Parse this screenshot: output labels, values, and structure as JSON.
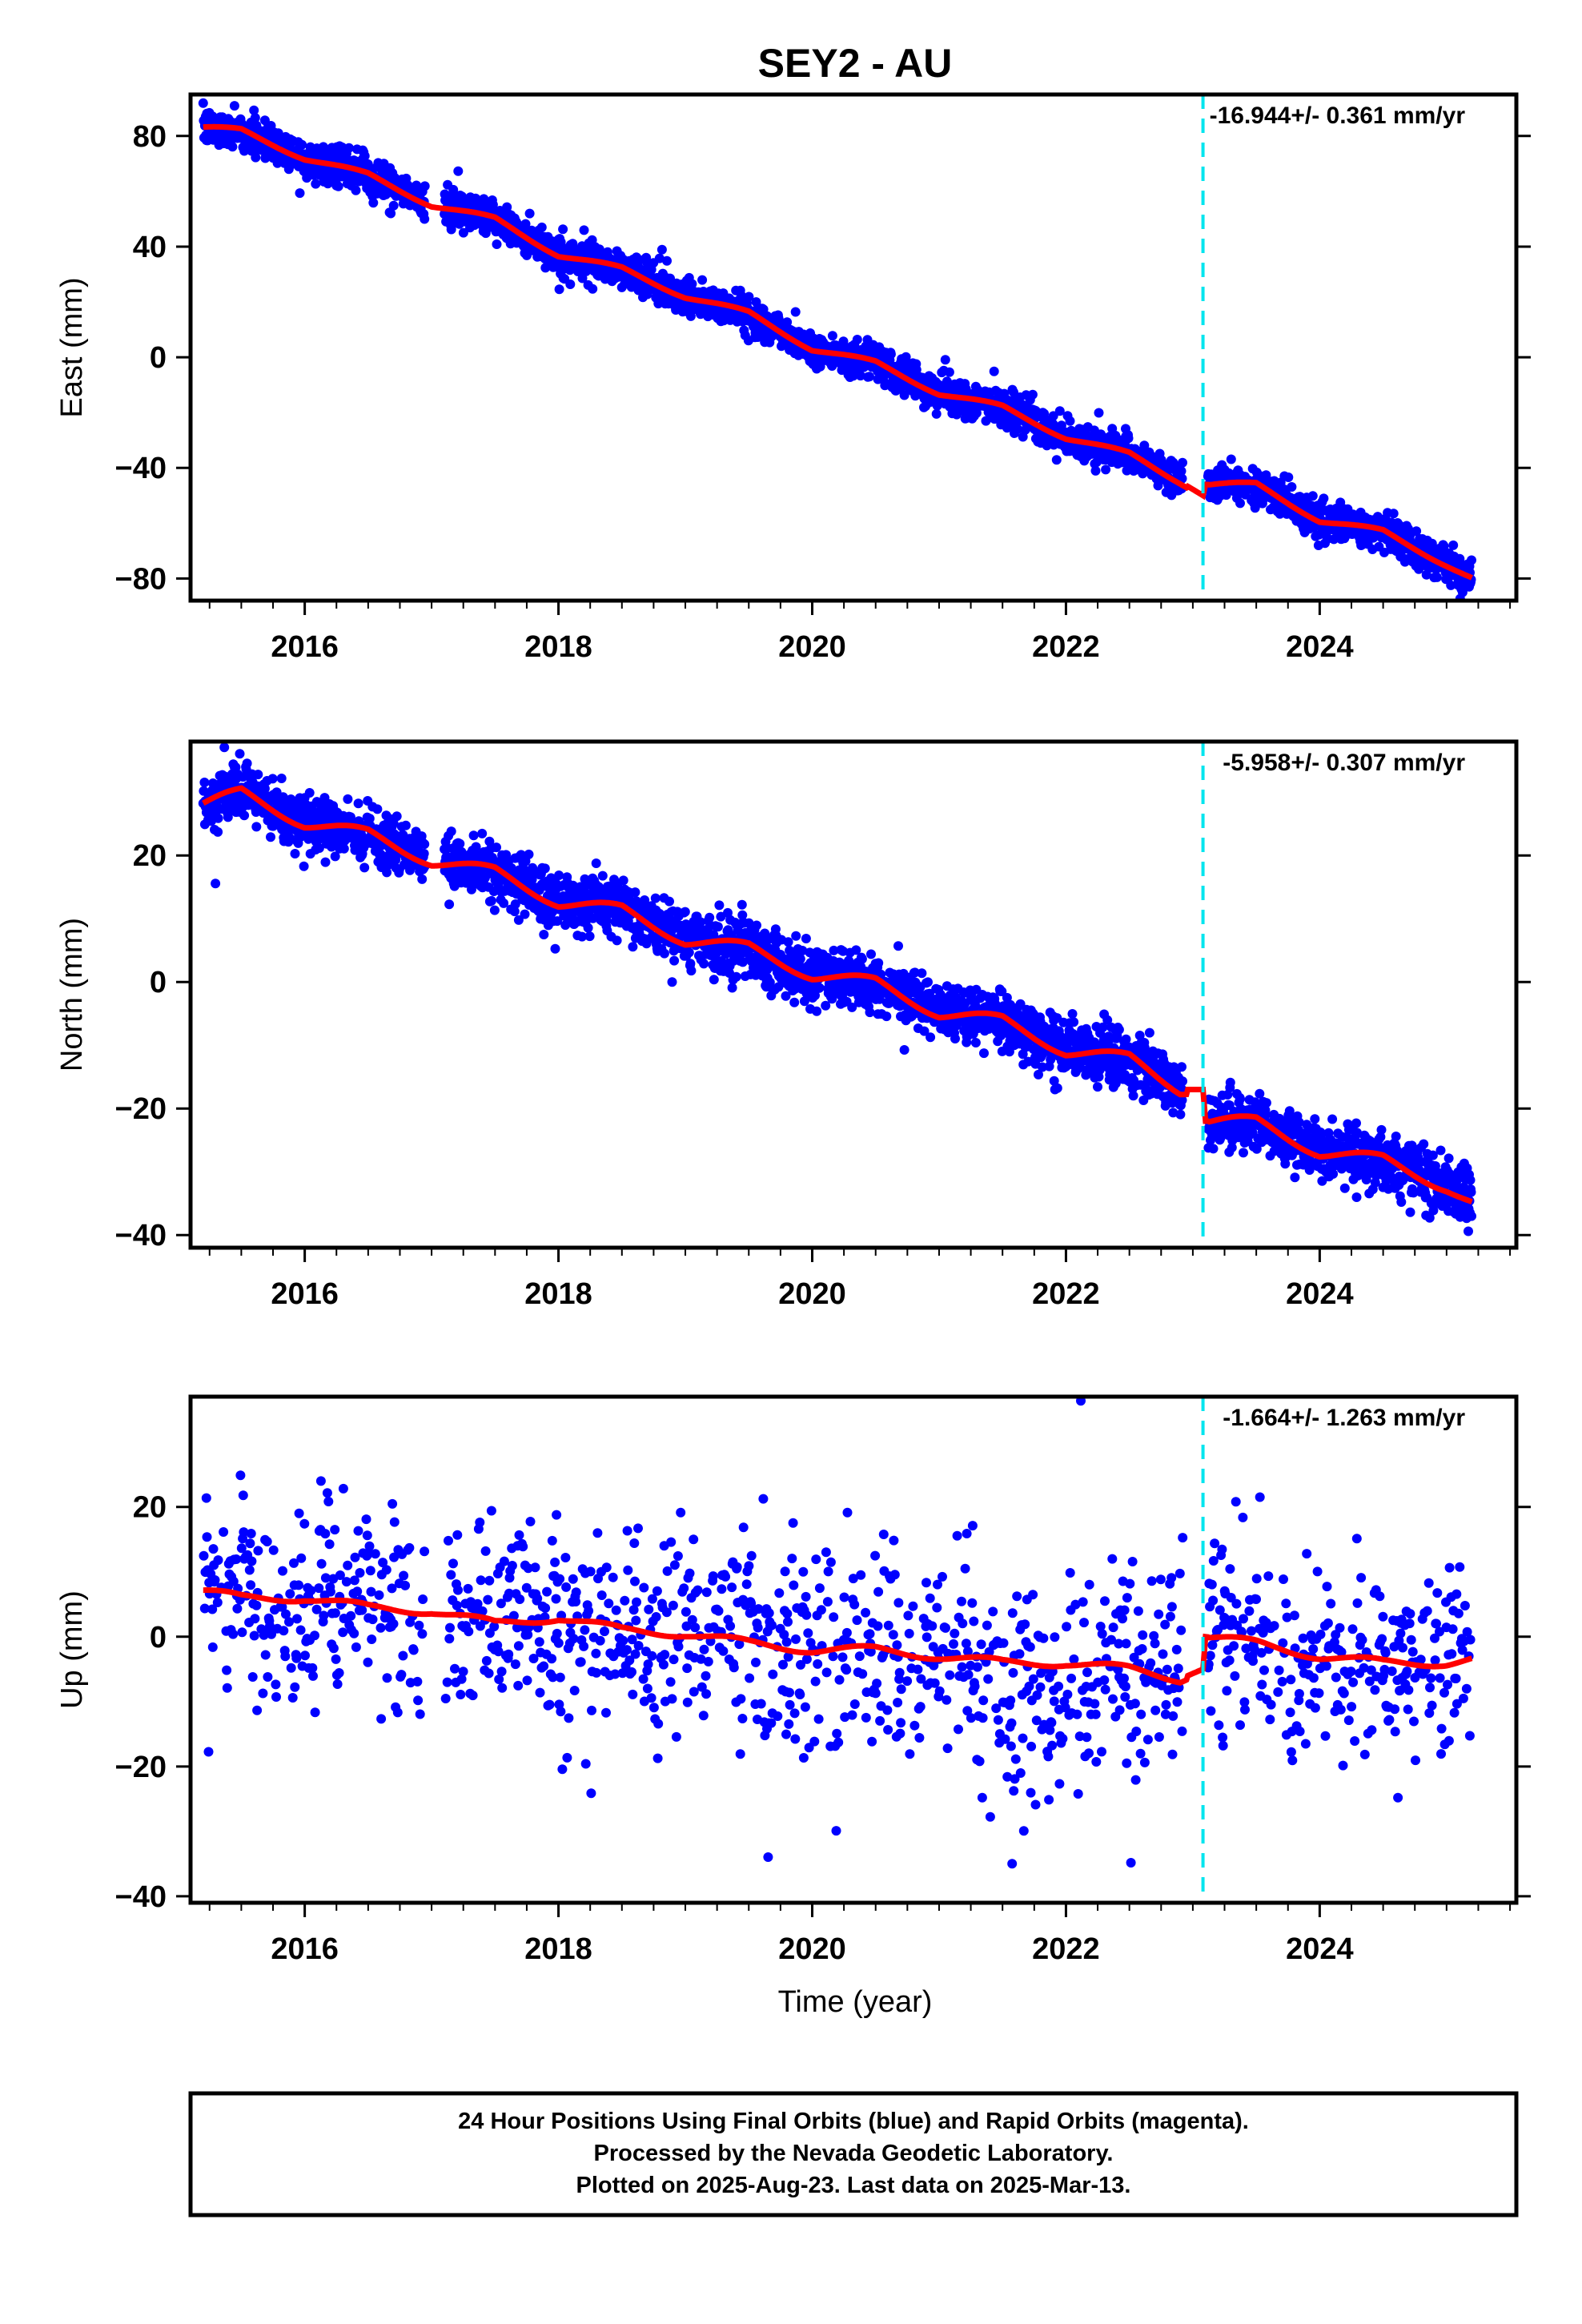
{
  "figure": {
    "title": "SEY2 - AU",
    "xlabel": "Time (year)",
    "footer": [
      "24 Hour Positions Using Final Orbits (blue) and Rapid Orbits (magenta).",
      "Processed by the Nevada Geodetic Laboratory.",
      "Plotted on 2025-Aug-23. Last data on 2025-Mar-13."
    ],
    "colors": {
      "points": "#0000ff",
      "model": "#ff0000",
      "offset_line": "#00e5ee",
      "axes": "#000000"
    }
  },
  "chart_data": [
    {
      "type": "scatter",
      "name": "east",
      "ylabel": "East (mm)",
      "rate_label": "-16.944+/- 0.361 mm/yr",
      "xlim": [
        2015.1,
        2025.55
      ],
      "ylim": [
        -88,
        95
      ],
      "xticks": [
        2016,
        2018,
        2020,
        2022,
        2024
      ],
      "yticks": [
        -80,
        -40,
        0,
        40,
        80
      ],
      "offset_epoch": 2023.08,
      "data_range": [
        2015.2,
        2025.2
      ],
      "model": {
        "x": [
          2015.2,
          2015.5,
          2016.0,
          2016.5,
          2017.0,
          2017.5,
          2018.0,
          2018.5,
          2019.0,
          2019.5,
          2020.0,
          2020.5,
          2021.0,
          2021.5,
          2022.0,
          2022.5,
          2022.9,
          2023.08,
          2023.1,
          2023.5,
          2024.0,
          2024.5,
          2025.0,
          2025.2
        ],
        "y": [
          83,
          82,
          72,
          66,
          55,
          50,
          37,
          32,
          22,
          16,
          3,
          -2,
          -13,
          -18,
          -29,
          -35,
          -45,
          -50,
          -46,
          -46,
          -59,
          -63,
          -75,
          -80
        ]
      },
      "scatter_spread": 3.2
    },
    {
      "type": "scatter",
      "name": "north",
      "ylabel": "North (mm)",
      "rate_label": "-5.958+/- 0.307 mm/yr",
      "xlim": [
        2015.1,
        2025.55
      ],
      "ylim": [
        -42,
        38
      ],
      "xticks": [
        2016,
        2018,
        2020,
        2022,
        2024
      ],
      "yticks": [
        -40,
        -20,
        0,
        20
      ],
      "offset_epoch": 2023.08,
      "data_range": [
        2015.2,
        2025.2
      ],
      "model": {
        "x": [
          2015.2,
          2015.5,
          2016.0,
          2016.5,
          2017.0,
          2017.5,
          2018.0,
          2018.5,
          2019.0,
          2019.5,
          2020.0,
          2020.5,
          2021.0,
          2021.5,
          2022.0,
          2022.5,
          2022.9,
          2023.08,
          2023.1,
          2023.5,
          2024.0,
          2024.5,
          2025.0,
          2025.2
        ],
        "y": [
          28,
          30,
          25,
          23.5,
          19,
          17.5,
          12.5,
          11.5,
          6.5,
          5.5,
          1,
          0,
          -5,
          -6,
          -11,
          -12,
          -17,
          -17,
          -22,
          -22,
          -27,
          -28,
          -32.5,
          -35
        ]
      },
      "scatter_spread": 2.2
    },
    {
      "type": "scatter",
      "name": "up",
      "ylabel": "Up (mm)",
      "rate_label": "-1.664+/- 1.263 mm/yr",
      "xlim": [
        2015.1,
        2025.55
      ],
      "ylim": [
        -41,
        37
      ],
      "xticks": [
        2016,
        2018,
        2020,
        2022,
        2024
      ],
      "yticks": [
        -40,
        -20,
        0,
        20
      ],
      "offset_epoch": 2023.08,
      "data_range": [
        2015.2,
        2025.2
      ],
      "model": {
        "x": [
          2015.2,
          2015.5,
          2016.0,
          2016.5,
          2017.0,
          2017.5,
          2018.0,
          2018.5,
          2019.0,
          2019.5,
          2020.0,
          2020.5,
          2021.0,
          2021.5,
          2022.0,
          2022.5,
          2022.9,
          2023.08,
          2023.1,
          2023.5,
          2024.0,
          2024.5,
          2025.0,
          2025.2
        ],
        "y": [
          7,
          6,
          6,
          4.5,
          4,
          2,
          3,
          1,
          0.5,
          -1,
          -2,
          -2,
          -3,
          -4,
          -4,
          -5,
          -6.5,
          -5,
          0,
          -1,
          -3,
          -4,
          -4,
          -3.5
        ]
      },
      "scatter_spread": 8
    }
  ]
}
